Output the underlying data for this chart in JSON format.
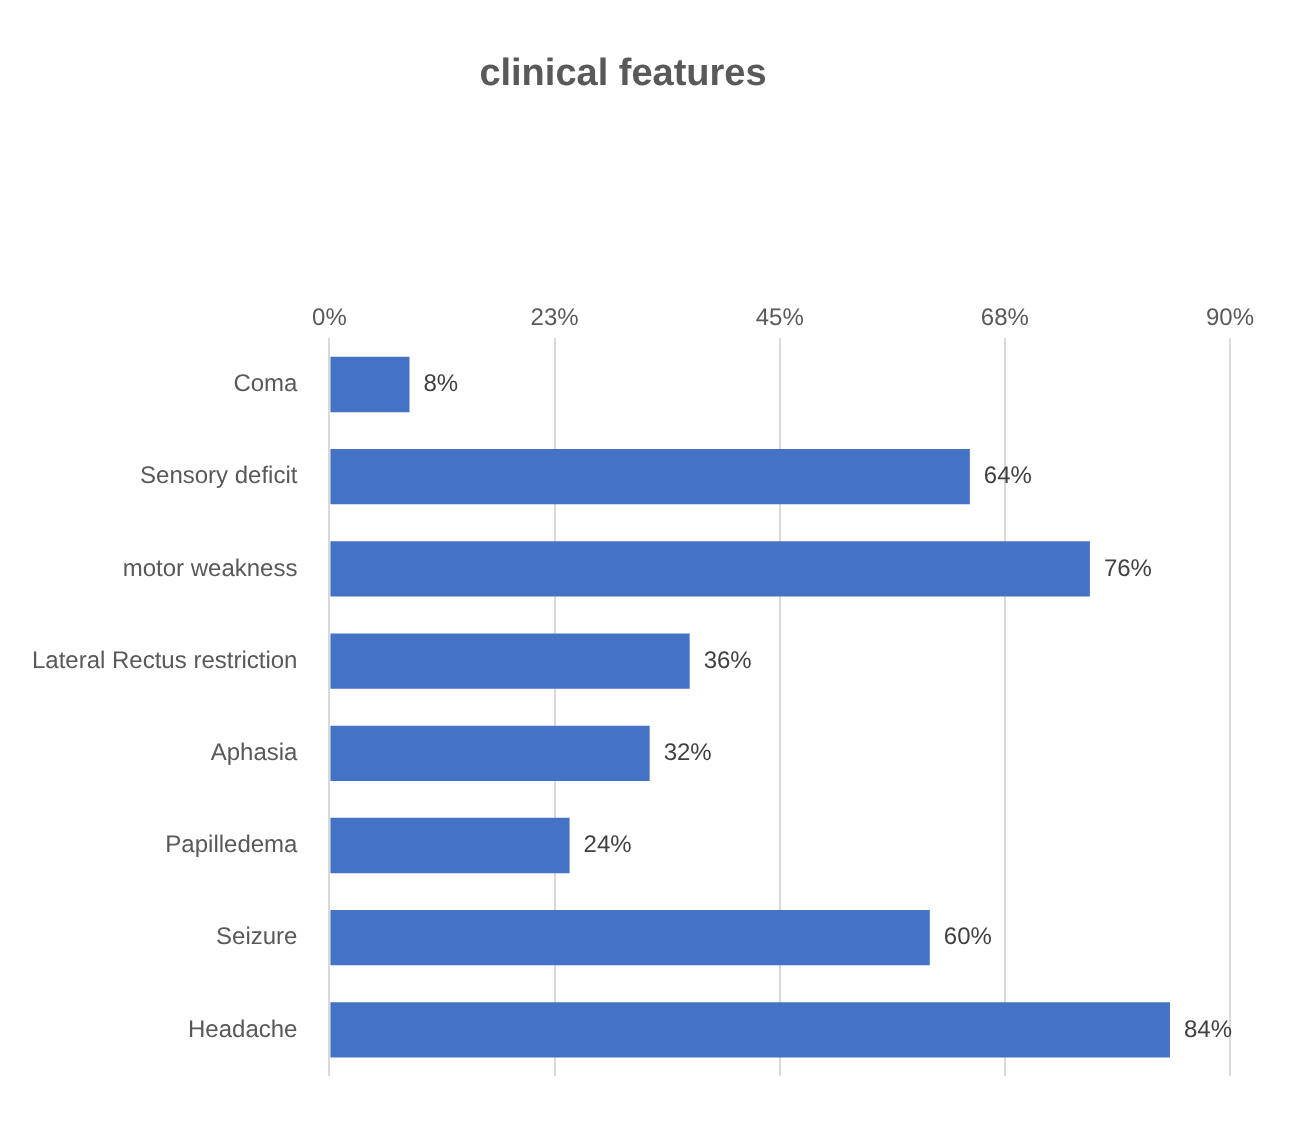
{
  "chart_data": {
    "type": "bar",
    "orientation": "horizontal",
    "title": "clinical features",
    "categories": [
      "Coma",
      "Sensory deficit",
      "motor weakness",
      "Lateral Rectus restriction",
      "Aphasia",
      "Papilledema",
      "Seizure",
      "Headache"
    ],
    "values": [
      8,
      64,
      76,
      36,
      32,
      24,
      60,
      84
    ],
    "value_labels": [
      "8%",
      "64%",
      "76%",
      "36%",
      "32%",
      "24%",
      "60%",
      "84%"
    ],
    "color": "#4472c4",
    "xlim": [
      0,
      90
    ],
    "xticks": [
      {
        "value": 0,
        "label": "0%"
      },
      {
        "value": 22.5,
        "label": "23%"
      },
      {
        "value": 45,
        "label": "45%"
      },
      {
        "value": 67.5,
        "label": "68%"
      },
      {
        "value": 90,
        "label": "90%"
      }
    ],
    "grid": "x",
    "legend": false
  }
}
